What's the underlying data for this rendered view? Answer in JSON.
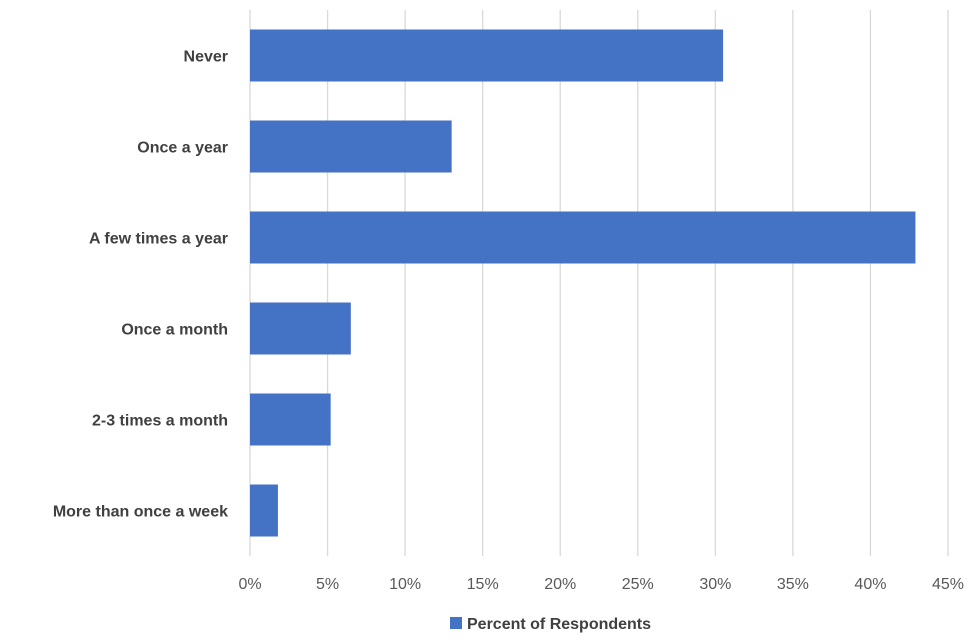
{
  "chart_data": {
    "type": "bar",
    "orientation": "horizontal",
    "categories": [
      "Never",
      "Once a year",
      "A few times a year",
      "Once a month",
      "2-3 times a month",
      "More than once a week"
    ],
    "series": [
      {
        "name": "Percent of Respondents",
        "values": [
          30.5,
          13.0,
          42.9,
          6.5,
          5.2,
          1.8
        ]
      }
    ],
    "x_ticks": [
      "0%",
      "5%",
      "10%",
      "15%",
      "20%",
      "25%",
      "30%",
      "35%",
      "40%",
      "45%"
    ],
    "xlim": [
      0,
      45
    ],
    "grid": true,
    "legend_position": "bottom",
    "colors": {
      "bar": "#4472C4",
      "grid": "#D9D9D9",
      "category_text": "#404040",
      "tick_text": "#595959"
    }
  }
}
